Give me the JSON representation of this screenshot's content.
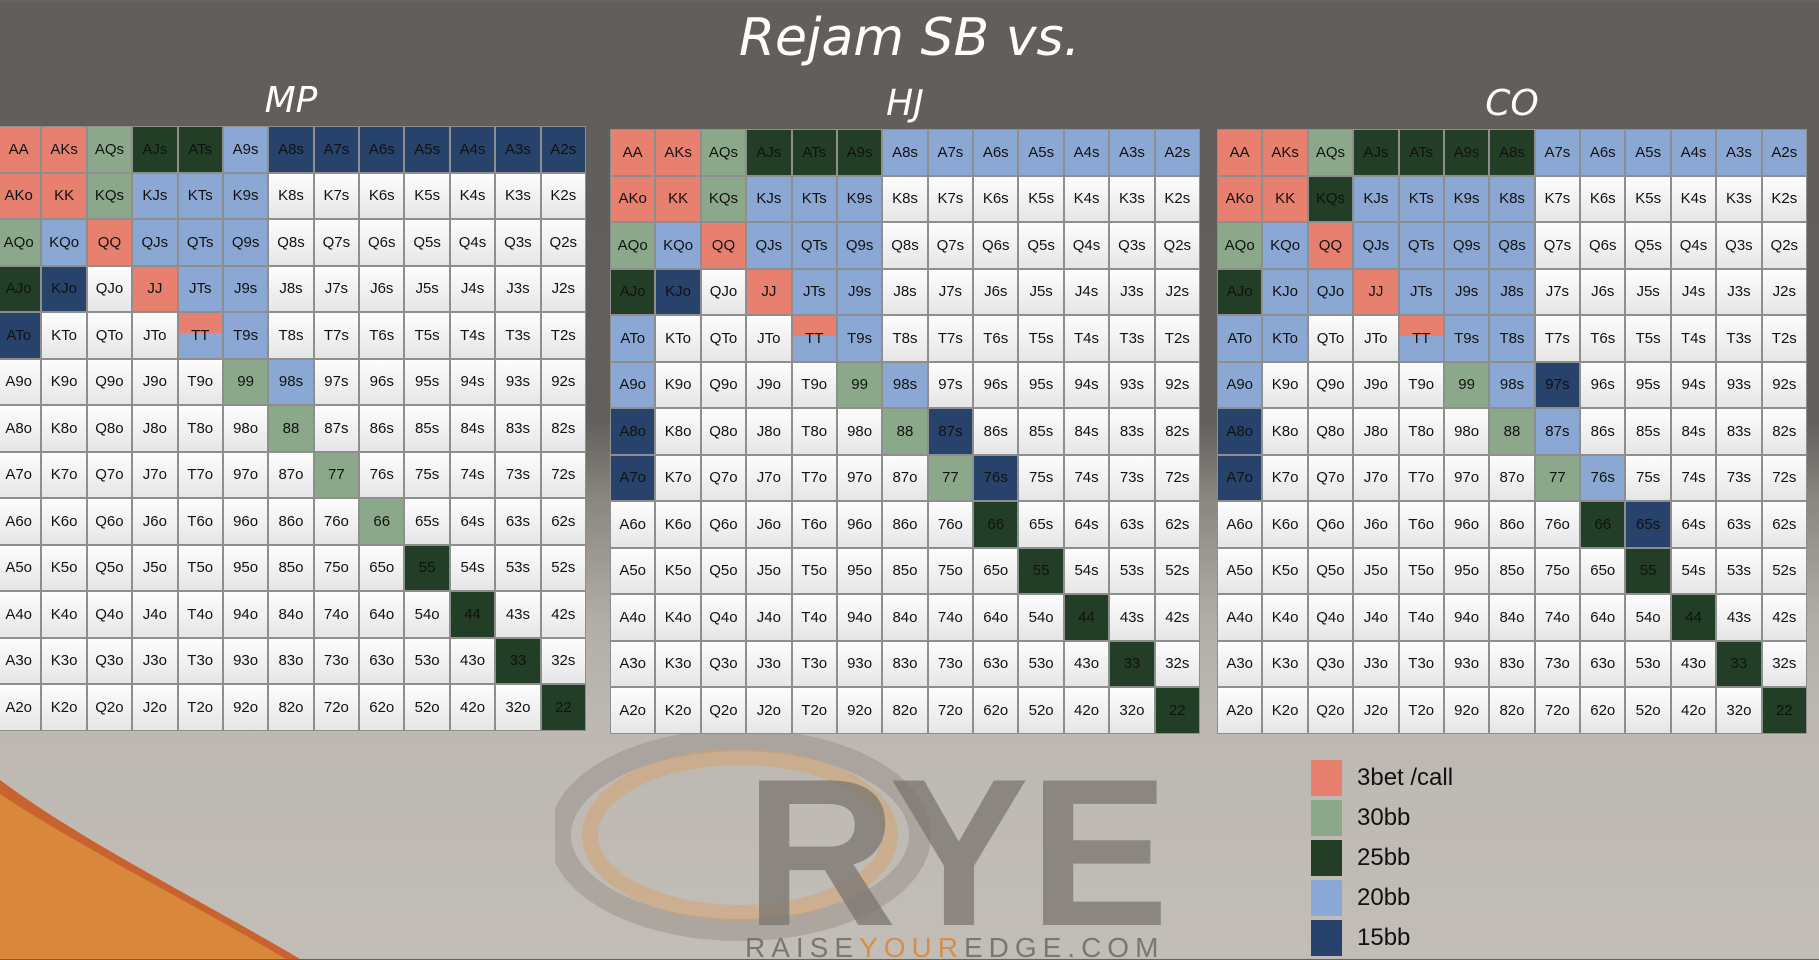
{
  "title": "Rejam SB vs.",
  "colors": {
    "3bet": "#e8806f",
    "30bb": "#8ba98a",
    "25bb": "#233e27",
    "20bb": "#8aa8d3",
    "15bb": "#27426b"
  },
  "legend": [
    {
      "key": "3b",
      "label": "3bet /call"
    },
    {
      "key": "30",
      "label": "30bb"
    },
    {
      "key": "25",
      "label": "25bb"
    },
    {
      "key": "20",
      "label": "20bb"
    },
    {
      "key": "15",
      "label": "15bb"
    }
  ],
  "logo": {
    "mark": "RYE",
    "url_parts": [
      "RAISE",
      "YOUR",
      "EDGE.COM"
    ]
  },
  "panels": [
    {
      "name": "MP",
      "rows": [
        "3b 3b 30 25 25 20 15 15 15 15 15 15 15",
        "3b 3b 30 20 20 20 . . . . . . .",
        "30 20 3b 20 20 20 . . . . . . .",
        "25 15 . 3b 20 20 . . . . . . .",
        "15 . . . sp 20 . . . . . . .",
        ". . . . . 30 20 . . . . . .",
        ". . . . . . 30 . . . . . .",
        ". . . . . . . 30 . . . . .",
        ". . . . . . . . 30 . . . .",
        ". . . . . . . . . 25 . . .",
        ". . . . . . . . . . 25 . .",
        ". . . . . . . . . . . 25 .",
        ". . . . . . . . . . . . 25"
      ]
    },
    {
      "name": "HJ",
      "rows": [
        "3b 3b 30 25 25 25 20 20 20 20 20 20 20",
        "3b 3b 30 20 20 20 . . . . . . .",
        "30 20 3b 20 20 20 . . . . . . .",
        "25 15 . 3b 20 20 . . . . . . .",
        "20 . . . sp 20 . . . . . . .",
        "20 . . . . 30 20 . . . . . .",
        "15 . . . . . 30 15 . . . . .",
        "15 . . . . . . 30 15 . . . .",
        ". . . . . . . . 25 . . . .",
        ". . . . . . . . . 25 . . .",
        ". . . . . . . . . . 25 . .",
        ". . . . . . . . . . . 25 .",
        ". . . . . . . . . . . . 25"
      ]
    },
    {
      "name": "CO",
      "rows": [
        "3b 3b 30 25 25 25 25 20 20 20 20 20 20",
        "3b 3b 25 20 20 20 20 . . . . . .",
        "30 20 3b 20 20 20 20 . . . . . .",
        "25 20 20 3b 20 20 20 . . . . . .",
        "20 20 . . sp 20 20 . . . . . .",
        "20 . . . . 30 20 15 . . . . .",
        "15 . . . . . 30 20 . . . . .",
        "15 . . . . . . 30 20 . . . .",
        ". . . . . . . . 25 15 . . .",
        ". . . . . . . . . 25 . . .",
        ". . . . . . . . . . 25 . .",
        ". . . . . . . . . . . 25 .",
        ". . . . . . . . . . . . 25"
      ]
    }
  ]
}
